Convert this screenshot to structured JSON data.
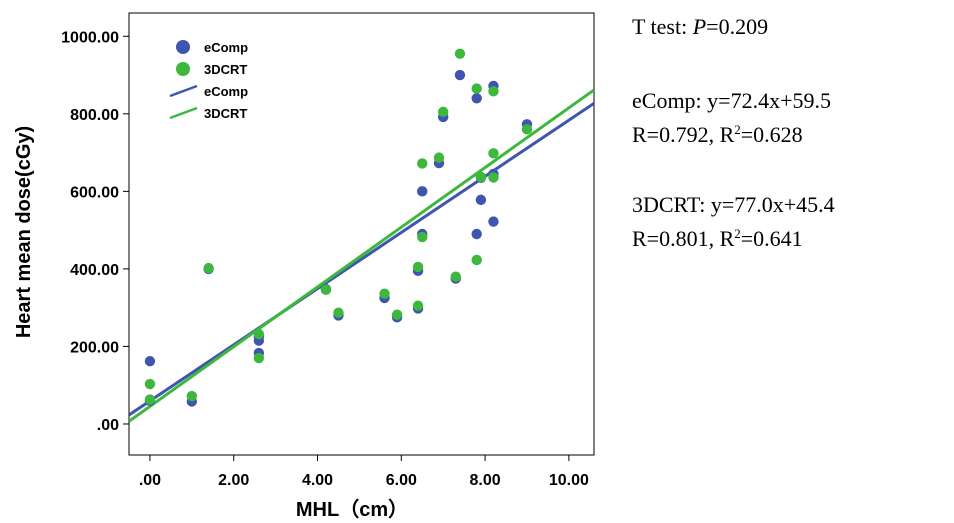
{
  "chart_data": {
    "type": "scatter",
    "xlabel": "MHL（cm）",
    "ylabel": "Heart mean dose(cGy)",
    "xlim": [
      -0.5,
      10.6
    ],
    "ylim": [
      -80,
      1060
    ],
    "x_ticks": [
      ".00",
      "2.00",
      "4.00",
      "6.00",
      "8.00",
      "10.00"
    ],
    "x_tick_values": [
      0,
      2,
      4,
      6,
      8,
      10
    ],
    "y_ticks": [
      ".00",
      "200.00",
      "400.00",
      "600.00",
      "800.00",
      "1000.00"
    ],
    "y_tick_values": [
      0,
      200,
      400,
      600,
      800,
      1000
    ],
    "legend_position": "top-left",
    "legend": [
      {
        "label": "eComp",
        "kind": "marker",
        "color": "#3f55b0"
      },
      {
        "label": "3DCRT",
        "kind": "marker",
        "color": "#3db83d"
      },
      {
        "label": "eComp",
        "kind": "line",
        "color": "#3f55b0"
      },
      {
        "label": "3DCRT",
        "kind": "line",
        "color": "#3db83d"
      }
    ],
    "series": [
      {
        "name": "eComp",
        "color": "#3f55b0",
        "points": [
          [
            0,
            162
          ],
          [
            0,
            60
          ],
          [
            1,
            58
          ],
          [
            1.4,
            400
          ],
          [
            2.6,
            183
          ],
          [
            2.6,
            215
          ],
          [
            2.6,
            225
          ],
          [
            4.2,
            348
          ],
          [
            4.5,
            280
          ],
          [
            5.6,
            325
          ],
          [
            5.9,
            275
          ],
          [
            6.4,
            298
          ],
          [
            6.4,
            395
          ],
          [
            6.5,
            600
          ],
          [
            6.5,
            490
          ],
          [
            6.9,
            673
          ],
          [
            7.0,
            792
          ],
          [
            7.3,
            375
          ],
          [
            7.4,
            900
          ],
          [
            7.8,
            840
          ],
          [
            7.8,
            490
          ],
          [
            7.9,
            578
          ],
          [
            7.9,
            635
          ],
          [
            8.2,
            872
          ],
          [
            8.2,
            522
          ],
          [
            8.2,
            645
          ],
          [
            9.0,
            773
          ]
        ]
      },
      {
        "name": "3DCRT",
        "color": "#3db83d",
        "points": [
          [
            0,
            103
          ],
          [
            0,
            63
          ],
          [
            1,
            72
          ],
          [
            1.4,
            402
          ],
          [
            2.6,
            170
          ],
          [
            2.6,
            232
          ],
          [
            4.2,
            346
          ],
          [
            4.5,
            287
          ],
          [
            5.6,
            336
          ],
          [
            5.9,
            282
          ],
          [
            6.4,
            305
          ],
          [
            6.4,
            405
          ],
          [
            6.5,
            672
          ],
          [
            6.5,
            482
          ],
          [
            6.9,
            687
          ],
          [
            7.0,
            805
          ],
          [
            7.3,
            380
          ],
          [
            7.4,
            955
          ],
          [
            7.8,
            865
          ],
          [
            7.8,
            423
          ],
          [
            7.9,
            637
          ],
          [
            8.2,
            858
          ],
          [
            8.2,
            698
          ],
          [
            8.2,
            636
          ],
          [
            9.0,
            760
          ]
        ]
      }
    ],
    "fit_lines": [
      {
        "name": "eComp",
        "color": "#3f55b0",
        "slope": 72.4,
        "intercept": 59.5
      },
      {
        "name": "3DCRT",
        "color": "#3db83d",
        "slope": 77.0,
        "intercept": 45.4
      }
    ]
  },
  "annotations": {
    "ttest_prefix": "T  test: ",
    "ttest_p_symbol": "P",
    "ttest_value": "=0.209",
    "ecomp_eq": "eComp: y=72.4x+59.5",
    "ecomp_r_prefix": "R=0.792, R",
    "ecomp_r_sup": "2",
    "ecomp_r_suffix": "=0.628",
    "crt_eq": "3DCRT: y=77.0x+45.4",
    "crt_r_prefix": "R=0.801, R",
    "crt_r_sup": "2",
    "crt_r_suffix": "=0.641"
  }
}
